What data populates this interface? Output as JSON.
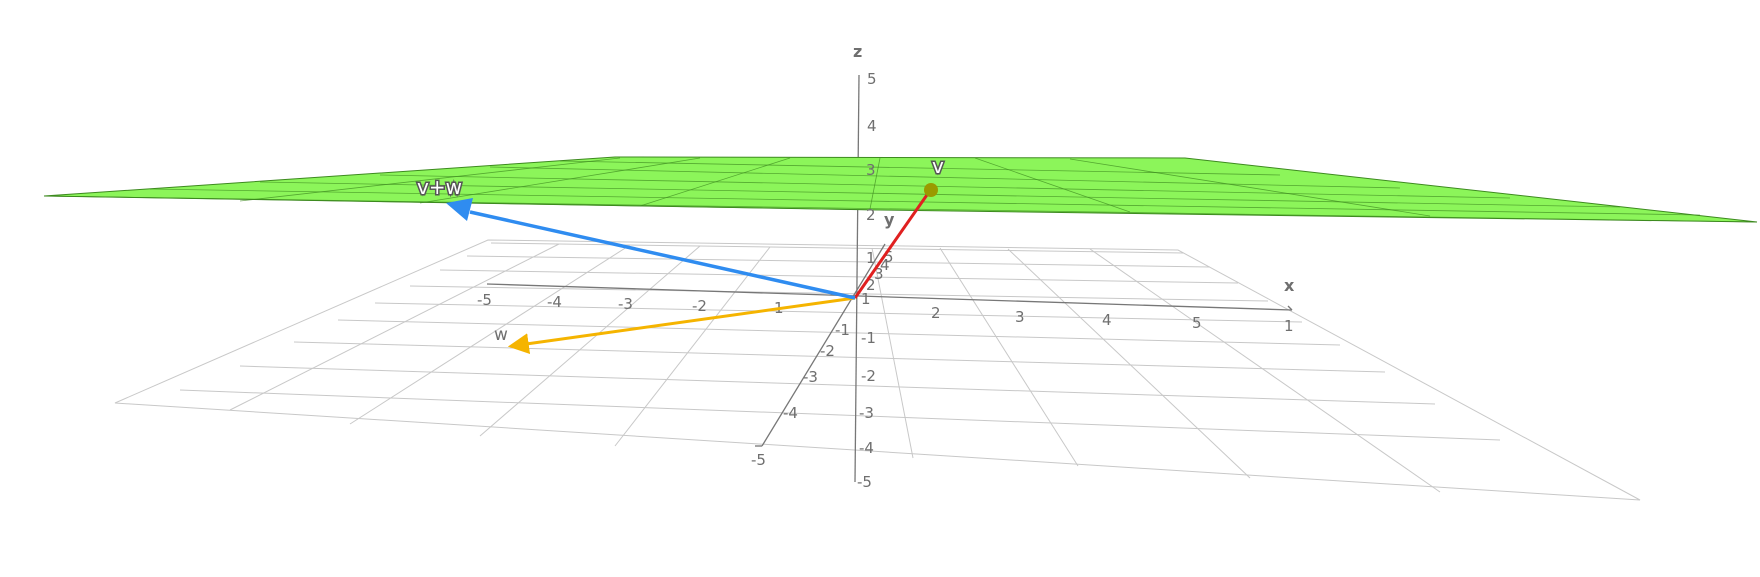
{
  "axes": {
    "x": {
      "name": "x",
      "ticks": [
        "-5",
        "-4",
        "-3",
        "-2",
        "1",
        "1",
        "2",
        "3",
        "4",
        "5"
      ]
    },
    "y": {
      "name": "y",
      "ticks": [
        "-5",
        "-4",
        "-3",
        "-2",
        "-1",
        "1",
        "2",
        "3",
        "4",
        "5"
      ]
    },
    "z": {
      "name": "z",
      "ticks": [
        "-5",
        "-4",
        "-3",
        "-2",
        "-1",
        "1",
        "2",
        "3",
        "4",
        "5"
      ]
    }
  },
  "vectors": {
    "v": {
      "label": "v",
      "color": "#e02020"
    },
    "w": {
      "label": "w",
      "color": "#f5b400"
    },
    "vw": {
      "label": "v+w",
      "color": "#2f8cf0"
    }
  },
  "plane": {
    "color": "#8cf55a",
    "edge_color": "#3d8a1f"
  },
  "point_color": "#9a9a00"
}
